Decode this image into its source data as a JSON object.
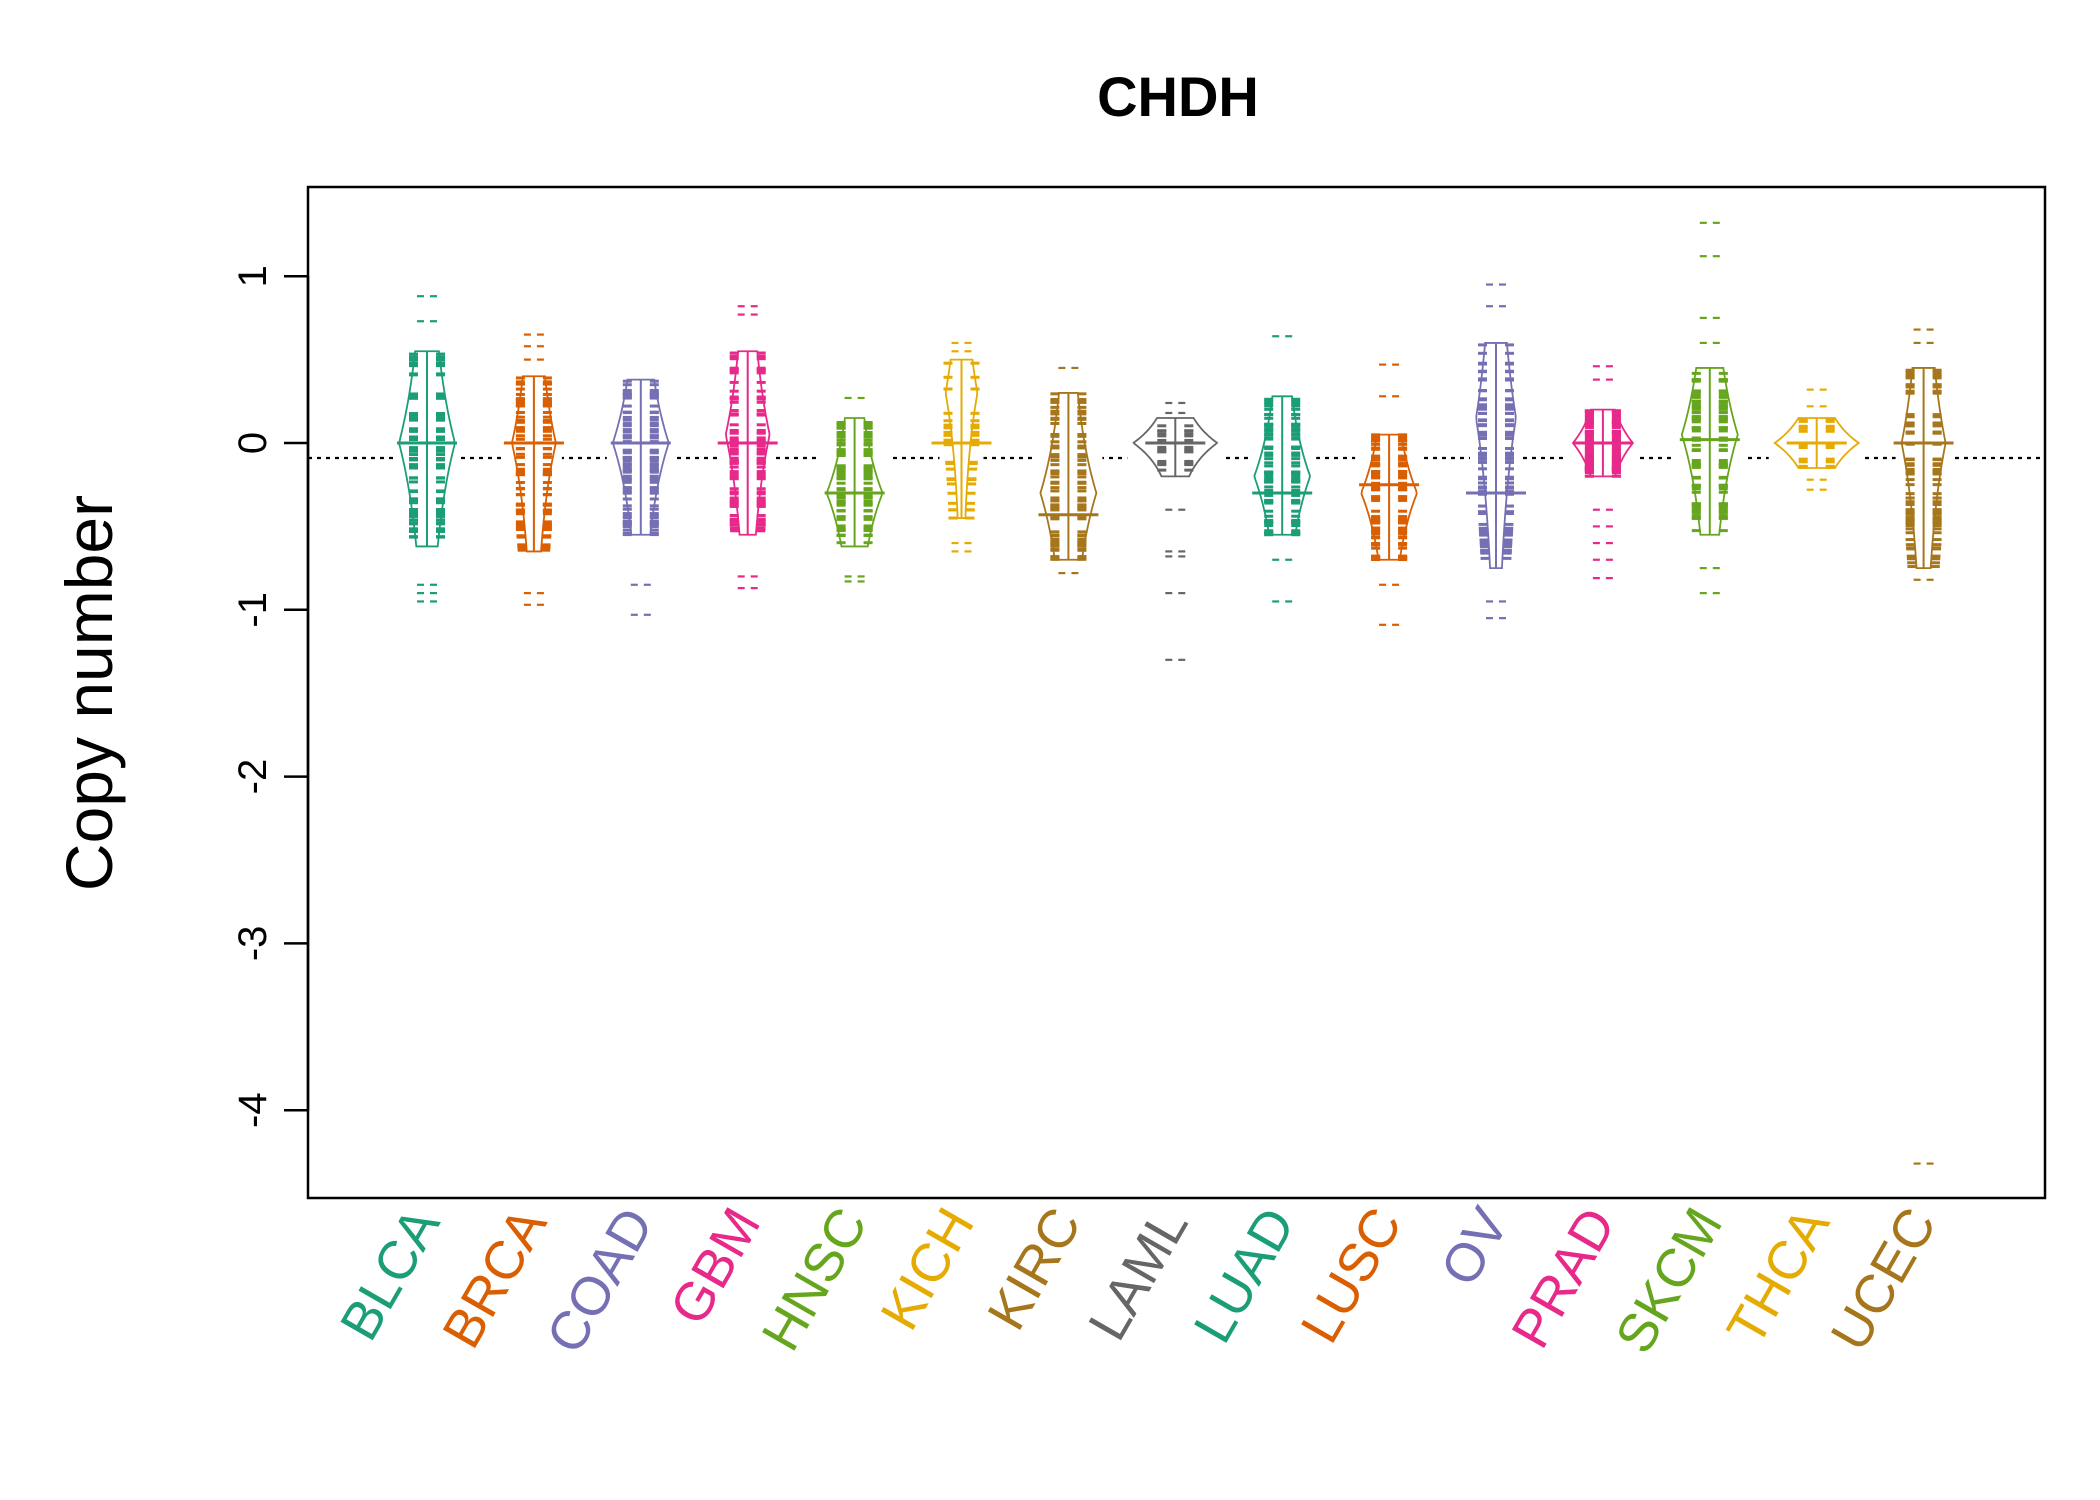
{
  "chart_data": {
    "type": "beanplot",
    "title": "CHDH",
    "ylabel": "Copy number",
    "xlabel": "",
    "ylim": [
      -4.55,
      1.55
    ],
    "yticks": [
      1,
      0,
      -1,
      -2,
      -3,
      -4
    ],
    "ytick_labels": [
      "1",
      "0",
      "-1",
      "-2",
      "-3",
      "-4"
    ],
    "overall_mean_line": -0.09,
    "series": [
      {
        "name": "BLCA",
        "color": "#1B9E77",
        "min": -0.95,
        "max": 0.88,
        "mean": 0.0,
        "q_low": -0.62,
        "q_high": 0.55,
        "mode": 0.0,
        "density": "diamond",
        "outliers": [
          0.88,
          0.73,
          -0.85,
          -0.9,
          -0.95
        ]
      },
      {
        "name": "BRCA",
        "color": "#D95F02",
        "min": -0.97,
        "max": 0.65,
        "mean": 0.0,
        "q_low": -0.65,
        "q_high": 0.4,
        "mode": 0.0,
        "density": "wide",
        "outliers": [
          0.65,
          0.58,
          0.5,
          -0.9,
          -0.97
        ]
      },
      {
        "name": "COAD",
        "color": "#7570B3",
        "min": -1.03,
        "max": 0.43,
        "mean": 0.0,
        "q_low": -0.55,
        "q_high": 0.38,
        "mode": 0.0,
        "density": "diamond",
        "outliers": [
          -0.85,
          -1.03
        ]
      },
      {
        "name": "GBM",
        "color": "#E7298A",
        "min": -0.87,
        "max": 0.82,
        "mean": 0.0,
        "q_low": -0.55,
        "q_high": 0.55,
        "mode": 0.05,
        "density": "wide",
        "outliers": [
          0.82,
          0.77,
          -0.8,
          -0.87
        ]
      },
      {
        "name": "HNSC",
        "color": "#66A61E",
        "min": -0.83,
        "max": 0.27,
        "mean": -0.3,
        "q_low": -0.62,
        "q_high": 0.15,
        "mode": -0.3,
        "density": "diamond",
        "outliers": [
          0.27,
          -0.8,
          -0.83
        ]
      },
      {
        "name": "KICH",
        "color": "#E6AB02",
        "min": -0.65,
        "max": 0.6,
        "mean": 0.0,
        "q_low": -0.45,
        "q_high": 0.5,
        "mode": 0.3,
        "density": "sparse",
        "outliers": [
          0.6,
          0.55,
          -0.6,
          -0.65
        ]
      },
      {
        "name": "KIRC",
        "color": "#A6761D",
        "min": -0.8,
        "max": 0.45,
        "mean": -0.43,
        "q_low": -0.7,
        "q_high": 0.3,
        "mode": -0.3,
        "density": "diamond",
        "outliers": [
          0.45,
          -0.78
        ]
      },
      {
        "name": "LAML",
        "color": "#666666",
        "min": -1.3,
        "max": 0.24,
        "mean": 0.0,
        "q_low": -0.2,
        "q_high": 0.15,
        "mode": 0.0,
        "density": "flat",
        "outliers": [
          0.24,
          0.18,
          -0.4,
          -0.65,
          -0.68,
          -0.9,
          -1.3
        ]
      },
      {
        "name": "LUAD",
        "color": "#1B9E77",
        "min": -0.95,
        "max": 0.64,
        "mean": -0.3,
        "q_low": -0.55,
        "q_high": 0.28,
        "mode": -0.2,
        "density": "diamond",
        "outliers": [
          0.64,
          -0.7,
          -0.95
        ]
      },
      {
        "name": "LUSC",
        "color": "#D95F02",
        "min": -1.09,
        "max": 0.47,
        "mean": -0.25,
        "q_low": -0.7,
        "q_high": 0.05,
        "mode": -0.3,
        "density": "diamond",
        "outliers": [
          0.47,
          0.28,
          -0.85,
          -1.09
        ]
      },
      {
        "name": "OV",
        "color": "#7570B3",
        "min": -1.05,
        "max": 0.95,
        "mean": -0.3,
        "q_low": -0.75,
        "q_high": 0.6,
        "mode": 0.15,
        "density": "tall",
        "outliers": [
          0.95,
          0.82,
          -0.95,
          -1.05
        ]
      },
      {
        "name": "PRAD",
        "color": "#E7298A",
        "min": -0.81,
        "max": 0.46,
        "mean": 0.0,
        "q_low": -0.2,
        "q_high": 0.2,
        "mode": 0.0,
        "density": "narrow",
        "outliers": [
          0.46,
          0.38,
          -0.4,
          -0.5,
          -0.6,
          -0.7,
          -0.81
        ]
      },
      {
        "name": "SKCM",
        "color": "#66A61E",
        "min": -0.9,
        "max": 1.32,
        "mean": 0.02,
        "q_low": -0.55,
        "q_high": 0.45,
        "mode": 0.05,
        "density": "diamond",
        "outliers": [
          1.32,
          1.12,
          0.75,
          0.6,
          -0.75,
          -0.9
        ]
      },
      {
        "name": "THCA",
        "color": "#E6AB02",
        "min": -0.28,
        "max": 0.32,
        "mean": 0.0,
        "q_low": -0.15,
        "q_high": 0.15,
        "mode": 0.0,
        "density": "flat",
        "outliers": [
          0.32,
          0.22,
          -0.22,
          -0.28
        ]
      },
      {
        "name": "UCEC",
        "color": "#A6761D",
        "min": -4.32,
        "max": 0.68,
        "mean": 0.0,
        "q_low": -0.75,
        "q_high": 0.45,
        "mode": 0.0,
        "density": "wide",
        "outliers": [
          0.68,
          0.6,
          -0.82,
          -4.32
        ]
      }
    ]
  }
}
